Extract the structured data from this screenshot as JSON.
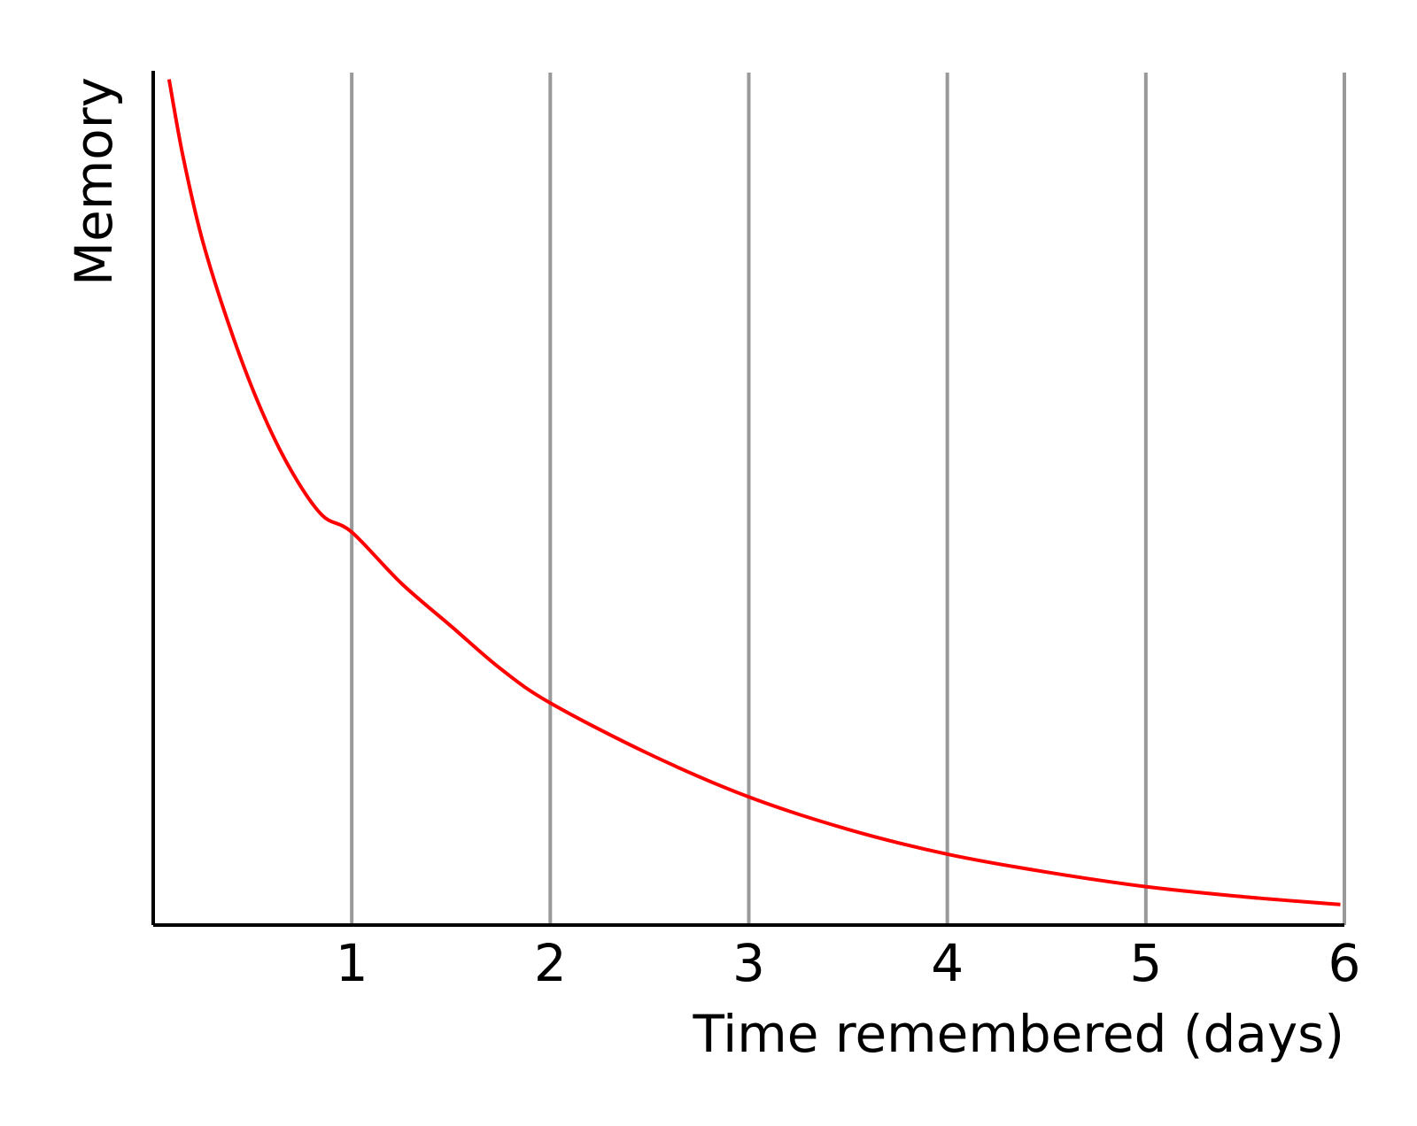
{
  "chart_data": {
    "type": "line",
    "xlabel": "Time remembered (days)",
    "ylabel": "Memory",
    "xlim": [
      0,
      6
    ],
    "ylim": [
      0,
      1
    ],
    "x_ticks": [
      "1",
      "2",
      "3",
      "4",
      "5",
      "6"
    ],
    "x_tick_values": [
      1,
      2,
      3,
      4,
      5,
      6
    ],
    "grid": "vertical",
    "y_tick_labels": "none",
    "series": [
      {
        "color": "#ff0000",
        "x": [
          0.08,
          0.15,
          0.25,
          0.4,
          0.55,
          0.7,
          0.85,
          1.0,
          1.25,
          1.5,
          1.75,
          2.0,
          2.5,
          3.0,
          3.5,
          4.0,
          4.5,
          5.0,
          5.5,
          5.98
        ],
        "y": [
          0.99,
          0.9,
          0.8,
          0.69,
          0.6,
          0.53,
          0.48,
          0.46,
          0.4,
          0.35,
          0.3,
          0.26,
          0.2,
          0.15,
          0.112,
          0.083,
          0.062,
          0.045,
          0.033,
          0.024
        ]
      }
    ]
  },
  "colors": {
    "axis": "#000000",
    "grid": "#999999",
    "curve": "#ff0000",
    "background": "#ffffff"
  }
}
